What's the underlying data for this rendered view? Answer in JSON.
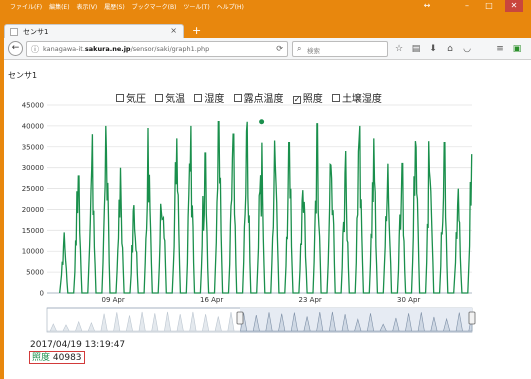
{
  "menu": [
    "ファイル(F)",
    "編集(E)",
    "表示(V)",
    "履歴(S)",
    "ブックマーク(B)",
    "ツール(T)",
    "ヘルプ(H)"
  ],
  "window_controls": {
    "restore": "↔",
    "minimize": "–",
    "maximize": "□",
    "close": "✕"
  },
  "tab": {
    "title": "センサ1",
    "close": "×",
    "new_tab": "+"
  },
  "navbar": {
    "url_host": "kanagawa-it.",
    "url_host_bold": "sakura.ne.jp",
    "url_path": "/sensor/saki/graph1.php",
    "search_placeholder": "検索"
  },
  "icons": [
    "back-icon",
    "info-icon",
    "reload-icon",
    "search-icon",
    "star-icon",
    "reading-list-icon",
    "download-icon",
    "home-icon",
    "pocket-icon",
    "menu-icon",
    "extension-icon"
  ],
  "page": {
    "heading": "センサ1"
  },
  "checkboxes": [
    {
      "label": "気圧",
      "checked": false
    },
    {
      "label": "気温",
      "checked": false
    },
    {
      "label": "湿度",
      "checked": false
    },
    {
      "label": "露点温度",
      "checked": false
    },
    {
      "label": "照度",
      "checked": true
    },
    {
      "label": "土壌湿度",
      "checked": false
    }
  ],
  "readout": {
    "date": "2017/04/19 13:19:47",
    "label": "照度",
    "value": "40983"
  },
  "chart_data": {
    "type": "line",
    "series": [
      {
        "name": "照度",
        "color": "#1a8f4c"
      }
    ],
    "y_ticks": [
      0,
      5000,
      10000,
      15000,
      20000,
      25000,
      30000,
      35000,
      40000,
      45000
    ],
    "ylim": [
      0,
      45000
    ],
    "x_ticks": [
      "09 Apr",
      "16 Apr",
      "23 Apr",
      "30 Apr"
    ],
    "x_tick_days": [
      9,
      16,
      23,
      30
    ],
    "x_range_days": [
      4.3,
      34.5
    ],
    "daily_peaks": [
      14500,
      28000,
      38000,
      40000,
      30000,
      26000,
      39500,
      35000,
      37000,
      40000,
      33500,
      41000,
      38000,
      40983,
      36000,
      41000,
      36000,
      31000,
      40500,
      39000,
      34000,
      40000,
      37000,
      39500,
      31000,
      40500,
      41000,
      36000,
      25000,
      38000
    ],
    "highlight": {
      "date": "2017/04/19 13:19:47",
      "value": 40983
    },
    "grid": true,
    "navigator": true
  }
}
